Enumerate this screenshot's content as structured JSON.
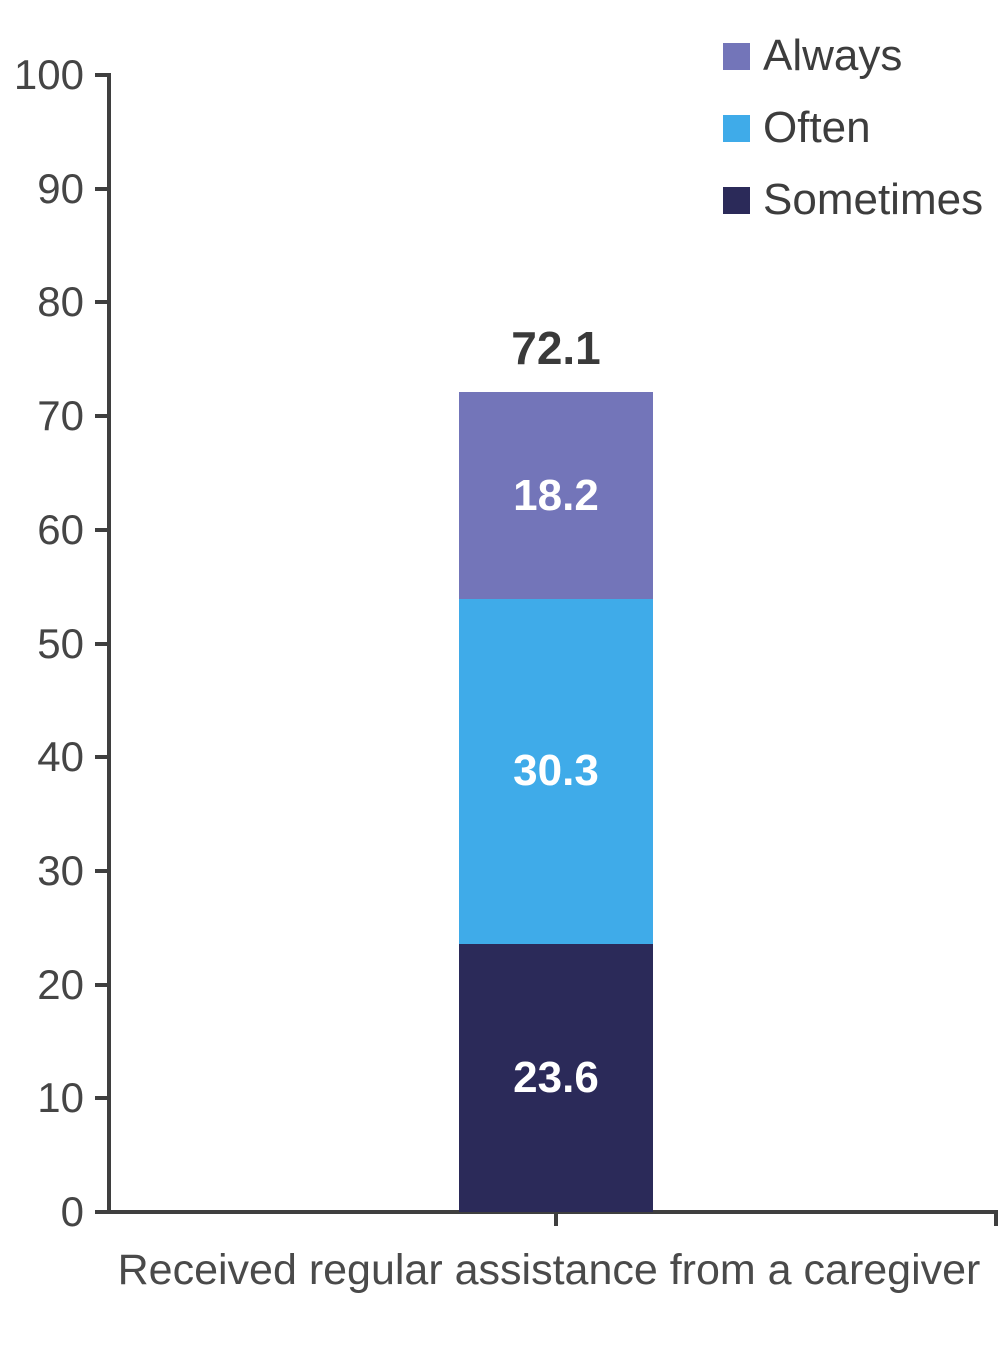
{
  "chart_data": {
    "type": "bar",
    "subtype": "stacked-vertical",
    "categories": [
      "Received regular assistance from a caregiver"
    ],
    "series": [
      {
        "name": "Sometimes",
        "color": "#2b2a59",
        "values": [
          23.6
        ]
      },
      {
        "name": "Often",
        "color": "#3fabe9",
        "values": [
          30.3
        ]
      },
      {
        "name": "Always",
        "color": "#7375b9",
        "values": [
          18.2
        ]
      }
    ],
    "total_labels": [
      "72.1"
    ],
    "legend": {
      "position": "top-right",
      "items": [
        "Always",
        "Often",
        "Sometimes"
      ]
    },
    "title": "",
    "xlabel": "Received regular assistance from a caregiver",
    "ylabel": "",
    "ylim": [
      0,
      100
    ],
    "yticks": [
      0,
      10,
      20,
      30,
      40,
      50,
      60,
      70,
      80,
      90,
      100
    ],
    "grid": false,
    "colors": {
      "axis": "#3f3f3f",
      "tick_label": "#454545",
      "value_label": "#ffffff",
      "total_label": "#3a3a3a",
      "xlabel": "#4a4a4a",
      "background": "#ffffff"
    }
  }
}
